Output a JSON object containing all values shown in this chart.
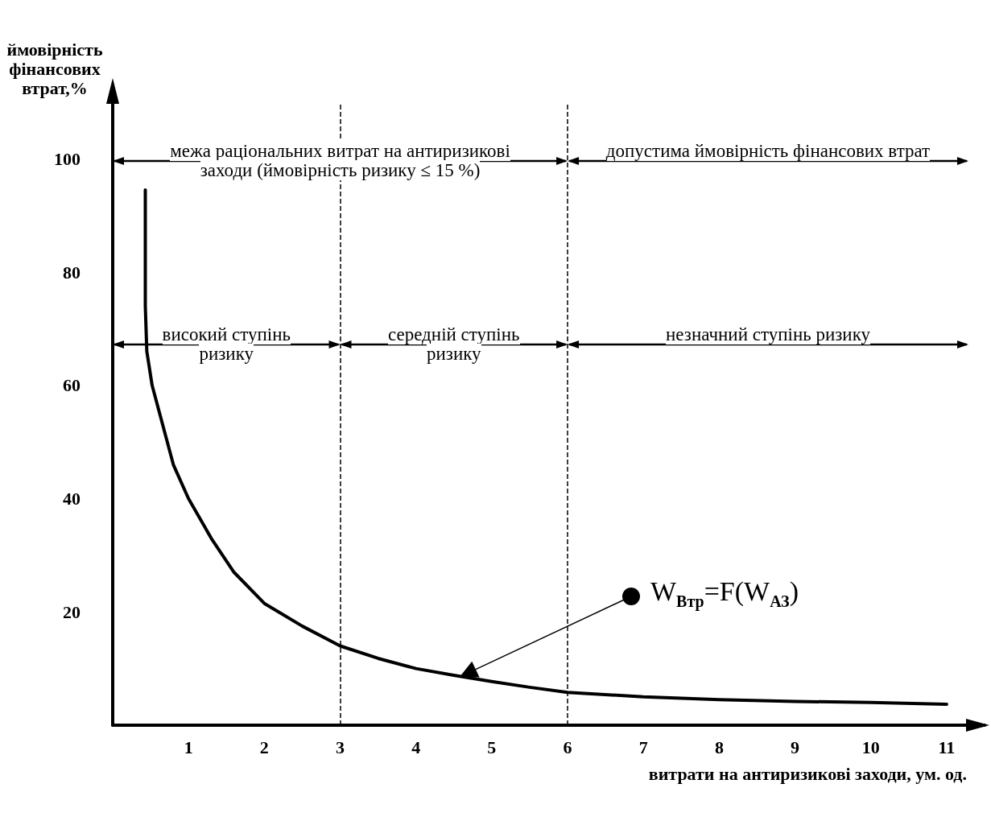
{
  "chart_data": {
    "type": "line",
    "xlabel": "витрати на антиризикові заходи, ум. од.",
    "ylabel": "ймовірність фінансових втрат,%",
    "xlim": [
      0,
      11.5
    ],
    "ylim": [
      0,
      110
    ],
    "xticks": [
      1,
      2,
      3,
      4,
      5,
      6,
      7,
      8,
      9,
      10,
      11
    ],
    "yticks": [
      20,
      40,
      60,
      80,
      100
    ],
    "marker": "none",
    "line_style": "solid",
    "series": [
      {
        "color": "#000000",
        "x": [
          0.43,
          0.43,
          0.45,
          0.52,
          0.64,
          0.8,
          1,
          1.3,
          1.6,
          2,
          2.5,
          3,
          3.5,
          4,
          4.5,
          5,
          5.5,
          6,
          7,
          8,
          9,
          10,
          11
        ],
        "values": [
          94.5,
          74,
          66,
          60,
          54,
          46,
          40,
          33,
          27,
          21.5,
          17.5,
          14,
          11.8,
          10,
          8.8,
          7.7,
          6.7,
          5.8,
          5,
          4.5,
          4.2,
          4,
          3.7
        ]
      }
    ],
    "ref_lines": [
      {
        "axis": "x",
        "value": 3,
        "line_style": "dashed",
        "color": "#000000"
      },
      {
        "axis": "x",
        "value": 6,
        "line_style": "dashed",
        "color": "#000000"
      }
    ],
    "annotations": [
      "межа раціональних витрат на антиризикові заходи (ймовірність ризику ≤ 15 %)",
      "допустима ймовірність фінансових втрат",
      "високий ступінь ризику",
      "середній ступінь ризику",
      "незначний ступінь ризику",
      "W$_{Втр}$=F(W$_{АЗ}$)"
    ]
  }
}
